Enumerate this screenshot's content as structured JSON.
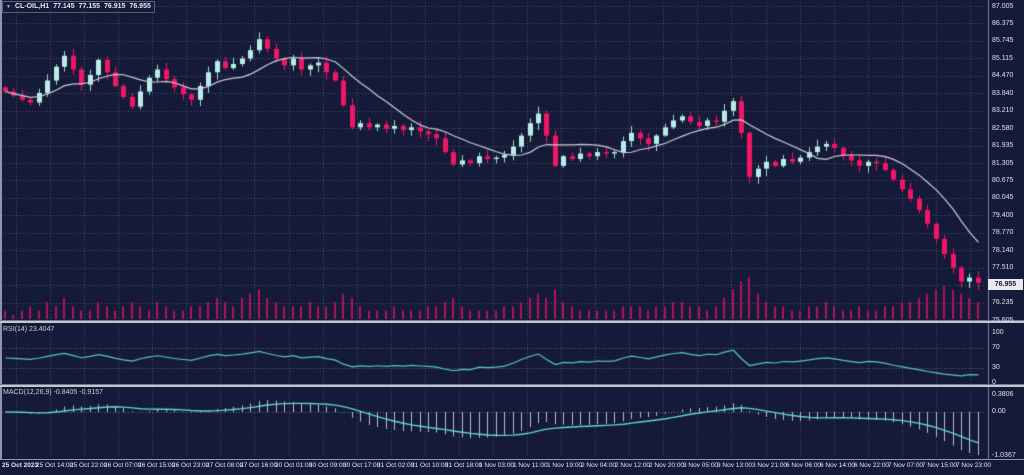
{
  "title": {
    "dropdown_icon": "triangle-down",
    "symbol": "CL-OIL,H1",
    "open": "77.145",
    "high": "77.155",
    "low": "76.915",
    "close": "76.955"
  },
  "indicators": {
    "rsi_label": "RSI(14) 23.4047",
    "macd_label": "MACD(12,26,9) -0.8405 -0.9157"
  },
  "price_axis": {
    "labels": [
      "87.005",
      "86.375",
      "85.745",
      "85.115",
      "84.470",
      "83.840",
      "83.210",
      "82.580",
      "81.935",
      "81.305",
      "80.675",
      "80.045",
      "79.400",
      "78.770",
      "78.140",
      "77.510",
      "76.235",
      "75.605"
    ],
    "current": "76.955"
  },
  "rsi_axis": {
    "labels": [
      "100",
      "70",
      "30",
      "0"
    ],
    "values": [
      100,
      70,
      30,
      0
    ]
  },
  "macd_axis": {
    "labels": [
      "0.3806",
      "0.00",
      "-1.0367"
    ],
    "values": [
      0.3806,
      0,
      -1.0367
    ]
  },
  "time_axis": {
    "labels": [
      "25 Oct 2023",
      "25 Oct 14:00",
      "25 Oct 22:00",
      "26 Oct 07:00",
      "26 Oct 15:00",
      "26 Oct 23:00",
      "27 Oct 08:00",
      "27 Oct 16:00",
      "30 Oct 01:00",
      "30 Oct 09:00",
      "30 Oct 17:00",
      "31 Oct 02:00",
      "31 Oct 10:00",
      "31 Oct 18:00",
      "1 Nov 03:00",
      "1 Nov 11:00",
      "1 Nov 19:00",
      "2 Nov 04:00",
      "2 Nov 12:00",
      "2 Nov 20:00",
      "3 Nov 05:00",
      "3 Nov 13:00",
      "3 Nov 21:00",
      "6 Nov 06:00",
      "6 Nov 14:00",
      "6 Nov 22:00",
      "7 Nov 07:00",
      "7 Nov 15:00",
      "7 Nov 23:00"
    ]
  },
  "colors": {
    "background": "#151a38",
    "grid": "rgba(150,158,196,0.40)",
    "bull": "#b9ece7",
    "bull_wick": "#9bd8d2",
    "bear": "#f01565",
    "volume": "#b01355",
    "moving_average": "#c9cbdb",
    "rsi_line": "#53c7c3",
    "macd_signal": "#62d4d2",
    "macd_histogram": "#b9bdd1",
    "axis_line": "rgba(160,168,200,0.7)",
    "level_line": "rgba(150,158,196,0.55)"
  },
  "chart_data": [
    {
      "type": "candlestick",
      "pane": "price",
      "symbol": "CL-OIL",
      "timeframe": "H1",
      "note": "2-hour aggregated approximation of the on-screen H1 candles, 25 Oct 2023 - 7 Nov 23:00",
      "open_rule": "each open equals previous close; first open 84.05",
      "closes": [
        83.9,
        83.75,
        83.6,
        83.5,
        83.85,
        84.3,
        84.8,
        85.2,
        84.7,
        84.15,
        84.5,
        85.05,
        84.6,
        84.1,
        83.7,
        83.35,
        83.9,
        84.4,
        84.7,
        84.35,
        84.05,
        83.8,
        83.6,
        84.1,
        84.6,
        85.0,
        84.75,
        84.9,
        85.1,
        85.4,
        85.8,
        85.45,
        85.1,
        84.85,
        85.1,
        84.7,
        84.85,
        84.95,
        84.6,
        84.3,
        83.4,
        82.6,
        82.75,
        82.6,
        82.7,
        82.55,
        82.65,
        82.5,
        82.6,
        82.45,
        82.35,
        82.2,
        81.7,
        81.25,
        81.4,
        81.3,
        81.55,
        81.45,
        81.5,
        81.6,
        81.9,
        82.3,
        82.75,
        83.1,
        82.3,
        81.2,
        81.55,
        81.45,
        81.65,
        81.55,
        81.7,
        81.65,
        81.7,
        82.1,
        82.4,
        82.2,
        82.0,
        82.3,
        82.6,
        82.85,
        83.0,
        82.8,
        82.65,
        82.85,
        82.8,
        83.2,
        83.55,
        82.4,
        80.8,
        81.1,
        81.35,
        81.2,
        81.45,
        81.35,
        81.5,
        81.7,
        81.9,
        82.0,
        81.85,
        81.6,
        81.4,
        81.2,
        81.35,
        81.3,
        81.05,
        80.7,
        80.35,
        80.0,
        79.6,
        79.1,
        78.55,
        78.0,
        77.5,
        77.0,
        77.145,
        76.955
      ],
      "volumes": [
        2,
        1,
        2,
        3,
        2,
        4,
        3,
        5,
        3,
        2,
        2,
        4,
        3,
        2,
        3,
        4,
        3,
        2,
        4,
        3,
        2,
        2,
        3,
        3,
        4,
        5,
        4,
        3,
        5,
        6,
        7,
        5,
        4,
        3,
        3,
        3,
        4,
        3,
        3,
        4,
        6,
        5,
        3,
        2,
        2,
        2,
        3,
        2,
        2,
        2,
        3,
        3,
        4,
        5,
        3,
        2,
        2,
        2,
        2,
        3,
        3,
        4,
        5,
        6,
        5,
        7,
        4,
        3,
        2,
        2,
        2,
        2,
        2,
        3,
        3,
        3,
        2,
        3,
        3,
        4,
        4,
        3,
        3,
        2,
        3,
        5,
        7,
        9,
        10,
        6,
        4,
        3,
        3,
        2,
        2,
        3,
        3,
        4,
        3,
        2,
        2,
        3,
        2,
        2,
        3,
        3,
        4,
        4,
        5,
        6,
        7,
        8,
        7,
        6,
        5,
        4
      ],
      "last_ohlc": {
        "open": 77.145,
        "high": 77.155,
        "low": 76.915,
        "close": 76.955
      },
      "overlay_moving_average": {
        "type": "line",
        "period": 10
      },
      "ylim": [
        75.605,
        87.005
      ],
      "y_ticks": [
        87.005,
        86.375,
        85.745,
        85.115,
        84.47,
        83.84,
        83.21,
        82.58,
        81.935,
        81.305,
        80.675,
        80.045,
        79.4,
        78.77,
        78.14,
        77.51,
        76.235,
        75.605
      ],
      "x_tick_labels_ref": "time_axis.labels",
      "grid": true,
      "legend_position": "none"
    },
    {
      "type": "line",
      "pane": "rsi",
      "name": "RSI(14)",
      "current_value": 23.4047,
      "levels": [
        70,
        30
      ],
      "ylim": [
        0,
        100
      ],
      "y_ticks": [
        100,
        70,
        30,
        0
      ],
      "series_computed_from": "chart_data[0].closes, Wilder RSI period 14"
    },
    {
      "type": "line+histogram",
      "pane": "macd",
      "name": "MACD(12,26,9)",
      "macd_value": -0.8405,
      "signal_value": -0.9157,
      "ylim": [
        -1.0367,
        0.3806
      ],
      "y_ticks": [
        0.3806,
        0,
        -1.0367
      ],
      "series_computed_from": "chart_data[0].closes, EMA12-EMA26 histogram, EMA9 signal line"
    }
  ]
}
